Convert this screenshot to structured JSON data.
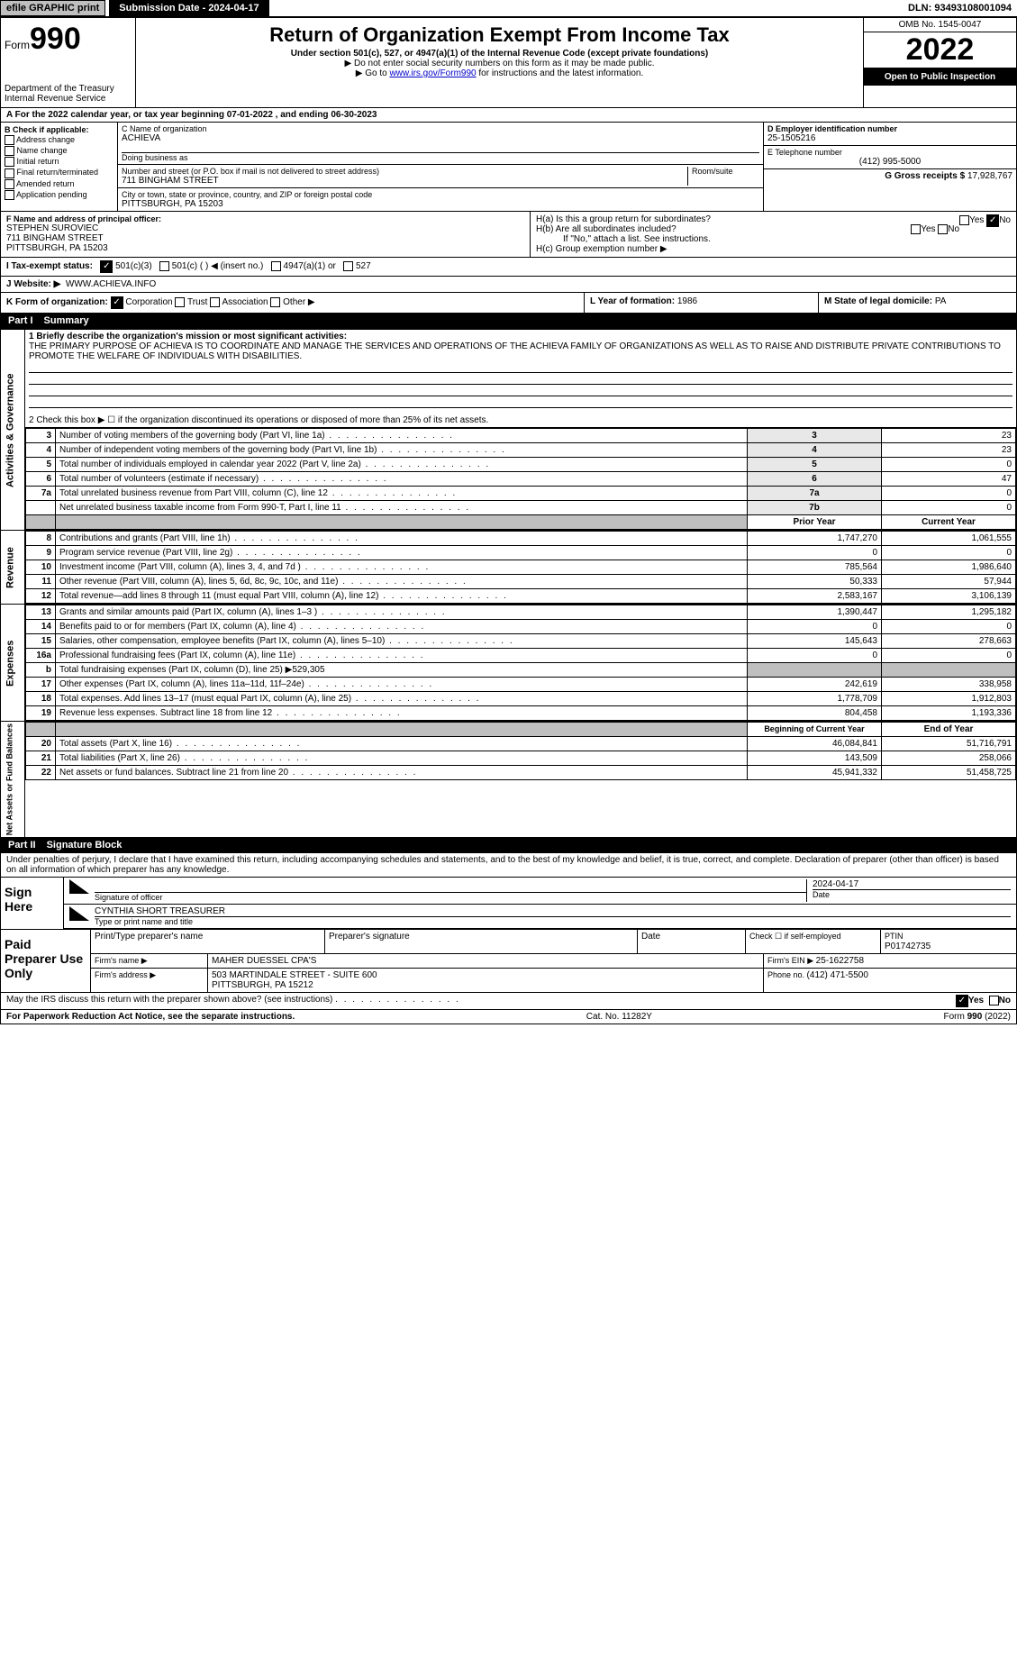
{
  "topbar": {
    "efile": "efile GRAPHIC print",
    "submission": "Submission Date - 2024-04-17",
    "dln": "DLN: 93493108001094"
  },
  "header": {
    "form_small": "Form",
    "form_num": "990",
    "dept": "Department of the Treasury",
    "irs": "Internal Revenue Service",
    "title": "Return of Organization Exempt From Income Tax",
    "sub1": "Under section 501(c), 527, or 4947(a)(1) of the Internal Revenue Code (except private foundations)",
    "sub2": "▶ Do not enter social security numbers on this form as it may be made public.",
    "sub3_pre": "▶ Go to ",
    "sub3_link": "www.irs.gov/Form990",
    "sub3_post": " for instructions and the latest information.",
    "omb": "OMB No. 1545-0047",
    "year": "2022",
    "open": "Open to Public Inspection"
  },
  "period": "A For the 2022 calendar year, or tax year beginning 07-01-2022     , and ending 06-30-2023",
  "colB": {
    "label": "B Check if applicable:",
    "items": [
      "Address change",
      "Name change",
      "Initial return",
      "Final return/terminated",
      "Amended return",
      "Application pending"
    ]
  },
  "colC": {
    "name_label": "C Name of organization",
    "name": "ACHIEVA",
    "dba_label": "Doing business as",
    "addr_label": "Number and street (or P.O. box if mail is not delivered to street address)",
    "room_label": "Room/suite",
    "addr": "711 BINGHAM STREET",
    "city_label": "City or town, state or province, country, and ZIP or foreign postal code",
    "city": "PITTSBURGH, PA  15203"
  },
  "colD": {
    "ein_label": "D Employer identification number",
    "ein": "25-1505216",
    "tel_label": "E Telephone number",
    "tel": "(412) 995-5000",
    "gross_label": "G Gross receipts $ ",
    "gross": "17,928,767"
  },
  "rowF": {
    "label": "F Name and address of principal officer:",
    "name": "STEPHEN SUROVIEC",
    "addr1": "711 BINGHAM STREET",
    "addr2": "PITTSBURGH, PA  15203"
  },
  "rowH": {
    "ha": "H(a)  Is this a group return for subordinates?",
    "hb": "H(b)  Are all subordinates included?",
    "hb_note": "If \"No,\" attach a list. See instructions.",
    "hc": "H(c)  Group exemption number ▶",
    "yes": "Yes",
    "no": "No"
  },
  "rowI": {
    "label": "I   Tax-exempt status:",
    "c3": "501(c)(3)",
    "c": "501(c) (    ) ◀ (insert no.)",
    "a1": "4947(a)(1) or",
    "527": "527"
  },
  "rowJ": {
    "label": "J   Website: ▶",
    "val": "WWW.ACHIEVA.INFO"
  },
  "rowK": {
    "label": "K Form of organization:",
    "corp": "Corporation",
    "trust": "Trust",
    "assoc": "Association",
    "other": "Other ▶",
    "L": "L Year of formation: ",
    "Lval": "1986",
    "M": "M State of legal domicile: ",
    "Mval": "PA"
  },
  "part1": {
    "header_num": "Part I",
    "header_txt": "Summary",
    "q1": "1  Briefly describe the organization's mission or most significant activities:",
    "q1_text": "THE PRIMARY PURPOSE OF ACHIEVA IS TO COORDINATE AND MANAGE THE SERVICES AND OPERATIONS OF THE ACHIEVA FAMILY OF ORGANIZATIONS AS WELL AS TO RAISE AND DISTRIBUTE PRIVATE CONTRIBUTIONS TO PROMOTE THE WELFARE OF INDIVIDUALS WITH DISABILITIES.",
    "q2": "2  Check this box ▶ ☐  if the organization discontinued its operations or disposed of more than 25% of its net assets.",
    "side_gov": "Activities & Governance",
    "side_rev": "Revenue",
    "side_exp": "Expenses",
    "side_net": "Net Assets or Fund Balances",
    "lines_gov": [
      {
        "n": "3",
        "t": "Number of voting members of the governing body (Part VI, line 1a)",
        "box": "3",
        "v": "23"
      },
      {
        "n": "4",
        "t": "Number of independent voting members of the governing body (Part VI, line 1b)",
        "box": "4",
        "v": "23"
      },
      {
        "n": "5",
        "t": "Total number of individuals employed in calendar year 2022 (Part V, line 2a)",
        "box": "5",
        "v": "0"
      },
      {
        "n": "6",
        "t": "Total number of volunteers (estimate if necessary)",
        "box": "6",
        "v": "47"
      },
      {
        "n": "7a",
        "t": "Total unrelated business revenue from Part VIII, column (C), line 12",
        "box": "7a",
        "v": "0"
      },
      {
        "n": "",
        "t": "Net unrelated business taxable income from Form 990-T, Part I, line 11",
        "box": "7b",
        "v": "0"
      }
    ],
    "col_prior": "Prior Year",
    "col_curr": "Current Year",
    "lines_rev": [
      {
        "n": "8",
        "t": "Contributions and grants (Part VIII, line 1h)",
        "p": "1,747,270",
        "c": "1,061,555"
      },
      {
        "n": "9",
        "t": "Program service revenue (Part VIII, line 2g)",
        "p": "0",
        "c": "0"
      },
      {
        "n": "10",
        "t": "Investment income (Part VIII, column (A), lines 3, 4, and 7d )",
        "p": "785,564",
        "c": "1,986,640"
      },
      {
        "n": "11",
        "t": "Other revenue (Part VIII, column (A), lines 5, 6d, 8c, 9c, 10c, and 11e)",
        "p": "50,333",
        "c": "57,944"
      },
      {
        "n": "12",
        "t": "Total revenue—add lines 8 through 11 (must equal Part VIII, column (A), line 12)",
        "p": "2,583,167",
        "c": "3,106,139"
      }
    ],
    "lines_exp": [
      {
        "n": "13",
        "t": "Grants and similar amounts paid (Part IX, column (A), lines 1–3 )",
        "p": "1,390,447",
        "c": "1,295,182"
      },
      {
        "n": "14",
        "t": "Benefits paid to or for members (Part IX, column (A), line 4)",
        "p": "0",
        "c": "0"
      },
      {
        "n": "15",
        "t": "Salaries, other compensation, employee benefits (Part IX, column (A), lines 5–10)",
        "p": "145,643",
        "c": "278,663"
      },
      {
        "n": "16a",
        "t": "Professional fundraising fees (Part IX, column (A), line 11e)",
        "p": "0",
        "c": "0"
      },
      {
        "n": "b",
        "t": "Total fundraising expenses (Part IX, column (D), line 25) ▶529,305",
        "p": "",
        "c": "",
        "grey": true
      },
      {
        "n": "17",
        "t": "Other expenses (Part IX, column (A), lines 11a–11d, 11f–24e)",
        "p": "242,619",
        "c": "338,958"
      },
      {
        "n": "18",
        "t": "Total expenses. Add lines 13–17 (must equal Part IX, column (A), line 25)",
        "p": "1,778,709",
        "c": "1,912,803"
      },
      {
        "n": "19",
        "t": "Revenue less expenses. Subtract line 18 from line 12",
        "p": "804,458",
        "c": "1,193,336"
      }
    ],
    "col_begin": "Beginning of Current Year",
    "col_end": "End of Year",
    "lines_net": [
      {
        "n": "20",
        "t": "Total assets (Part X, line 16)",
        "p": "46,084,841",
        "c": "51,716,791"
      },
      {
        "n": "21",
        "t": "Total liabilities (Part X, line 26)",
        "p": "143,509",
        "c": "258,066"
      },
      {
        "n": "22",
        "t": "Net assets or fund balances. Subtract line 21 from line 20",
        "p": "45,941,332",
        "c": "51,458,725"
      }
    ]
  },
  "part2": {
    "header_num": "Part II",
    "header_txt": "Signature Block",
    "decl": "Under penalties of perjury, I declare that I have examined this return, including accompanying schedules and statements, and to the best of my knowledge and belief, it is true, correct, and complete. Declaration of preparer (other than officer) is based on all information of which preparer has any knowledge.",
    "sign_here": "Sign Here",
    "sig_officer": "Signature of officer",
    "date": "Date",
    "date_val": "2024-04-17",
    "name_title": "CYNTHIA SHORT TREASURER",
    "name_label": "Type or print name and title",
    "paid": "Paid Preparer Use Only",
    "print_name": "Print/Type preparer's name",
    "prep_sig": "Preparer's signature",
    "date2": "Date",
    "check_if": "Check ☐ if self-employed",
    "ptin_label": "PTIN",
    "ptin": "P01742735",
    "firm_name_label": "Firm's name    ▶",
    "firm_name": "MAHER DUESSEL CPA'S",
    "firm_ein_label": "Firm's EIN ▶ ",
    "firm_ein": "25-1622758",
    "firm_addr_label": "Firm's address ▶",
    "firm_addr": "503 MARTINDALE STREET - SUITE 600",
    "firm_city": "PITTSBURGH, PA  15212",
    "phone_label": "Phone no. ",
    "phone": "(412) 471-5500",
    "may": "May the IRS discuss this return with the preparer shown above? (see instructions)",
    "yes": "Yes",
    "no": "No"
  },
  "footer": {
    "left": "For Paperwork Reduction Act Notice, see the separate instructions.",
    "mid": "Cat. No. 11282Y",
    "right": "Form 990 (2022)"
  }
}
